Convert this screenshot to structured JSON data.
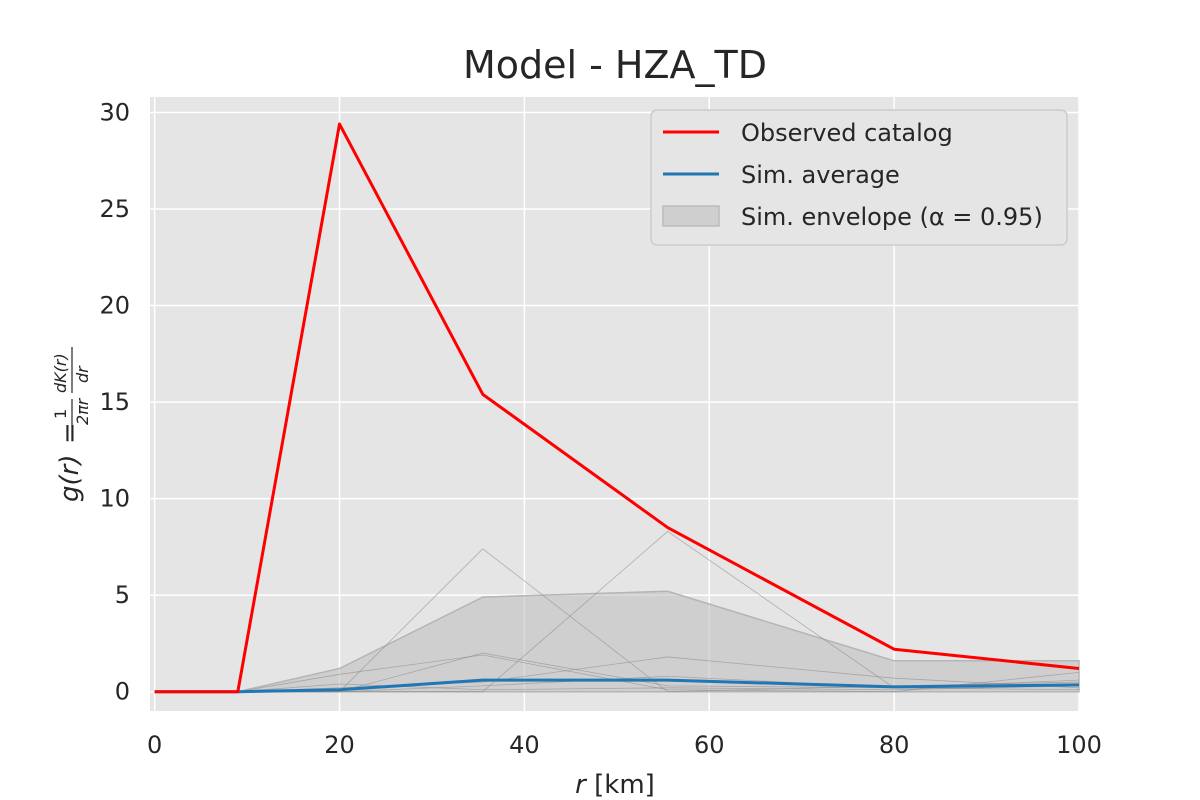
{
  "chart_data": {
    "type": "line",
    "title": "Model - HZA_TD",
    "xlabel": "r  [km]",
    "ylabel": "g(r) = 1/(2πr) · dK(r)/dr",
    "xlim": [
      -0.5,
      100
    ],
    "ylim": [
      -1,
      30.8
    ],
    "xticks": [
      0,
      20,
      40,
      60,
      80,
      100
    ],
    "yticks": [
      0,
      5,
      10,
      15,
      20,
      25,
      30
    ],
    "grid": true,
    "legend_position": "top-right",
    "x": [
      0,
      9,
      20,
      35.5,
      55.5,
      80,
      100
    ],
    "series": [
      {
        "name": "Observed catalog",
        "color": "#ff0000",
        "values": [
          0,
          0,
          29.4,
          15.4,
          8.5,
          2.2,
          1.2
        ]
      },
      {
        "name": "Sim. average",
        "color": "#1f77b4",
        "values": [
          0,
          0,
          0.1,
          0.6,
          0.6,
          0.25,
          0.35
        ]
      }
    ],
    "envelope": {
      "name": "Sim. envelope (α = 0.95)",
      "color": "#bdbdbd",
      "lower": [
        0,
        0,
        0,
        0,
        0,
        0,
        0
      ],
      "upper": [
        0,
        0,
        1.2,
        4.9,
        5.2,
        1.6,
        1.6
      ]
    },
    "simulations": [
      [
        0,
        0,
        0,
        7.4,
        0,
        0.3,
        0.5
      ],
      [
        0,
        0,
        0,
        0,
        8.3,
        0.2,
        0.4
      ],
      [
        0,
        0,
        0.9,
        1.9,
        0.1,
        0,
        1.0
      ],
      [
        0,
        0,
        0,
        2.0,
        0.3,
        0.2,
        0.1
      ],
      [
        0,
        0,
        0.2,
        0.5,
        1.8,
        0.7,
        0.2
      ],
      [
        0,
        0,
        0,
        0.3,
        0.8,
        0.2,
        0.6
      ],
      [
        0,
        0,
        0.4,
        0.1,
        0.2,
        0.1,
        0.3
      ]
    ]
  }
}
